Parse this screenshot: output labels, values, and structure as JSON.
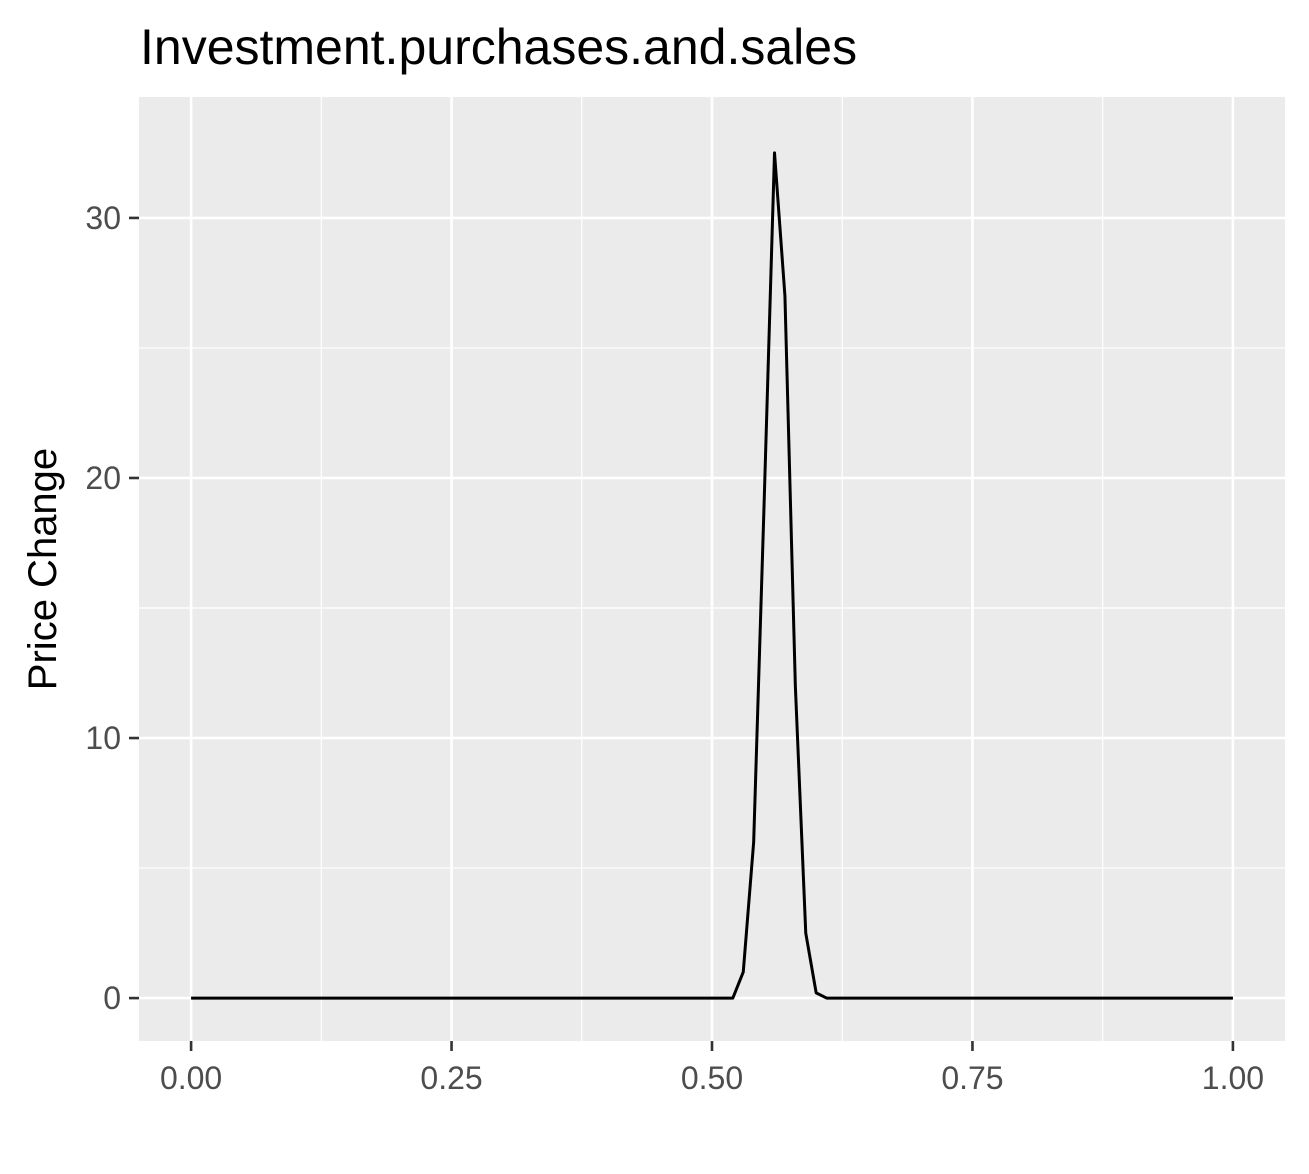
{
  "chart_data": {
    "type": "line",
    "title": "Investment.purchases.and.sales",
    "xlabel": "",
    "ylabel": "Price Change",
    "xlim": [
      -0.05,
      1.05
    ],
    "ylim": [
      -1.65,
      34.65
    ],
    "x_ticks": [
      0.0,
      0.25,
      0.5,
      0.75,
      1.0
    ],
    "x_tick_labels": [
      "0.00",
      "0.25",
      "0.50",
      "0.75",
      "1.00"
    ],
    "y_ticks": [
      0,
      10,
      20,
      30
    ],
    "y_tick_labels": [
      "0",
      "10",
      "20",
      "30"
    ],
    "grid": true,
    "background": "#ebebeb",
    "grid_color": "#ffffff",
    "line_color": "#000000",
    "series": [
      {
        "x": [
          0.0,
          0.52,
          0.53,
          0.54,
          0.55,
          0.56,
          0.57,
          0.58,
          0.59,
          0.6,
          0.61,
          1.0
        ],
        "y": [
          0.0,
          0.0,
          1.0,
          6.0,
          19.0,
          32.5,
          27.0,
          12.0,
          2.5,
          0.2,
          0.0,
          0.0
        ]
      }
    ]
  }
}
